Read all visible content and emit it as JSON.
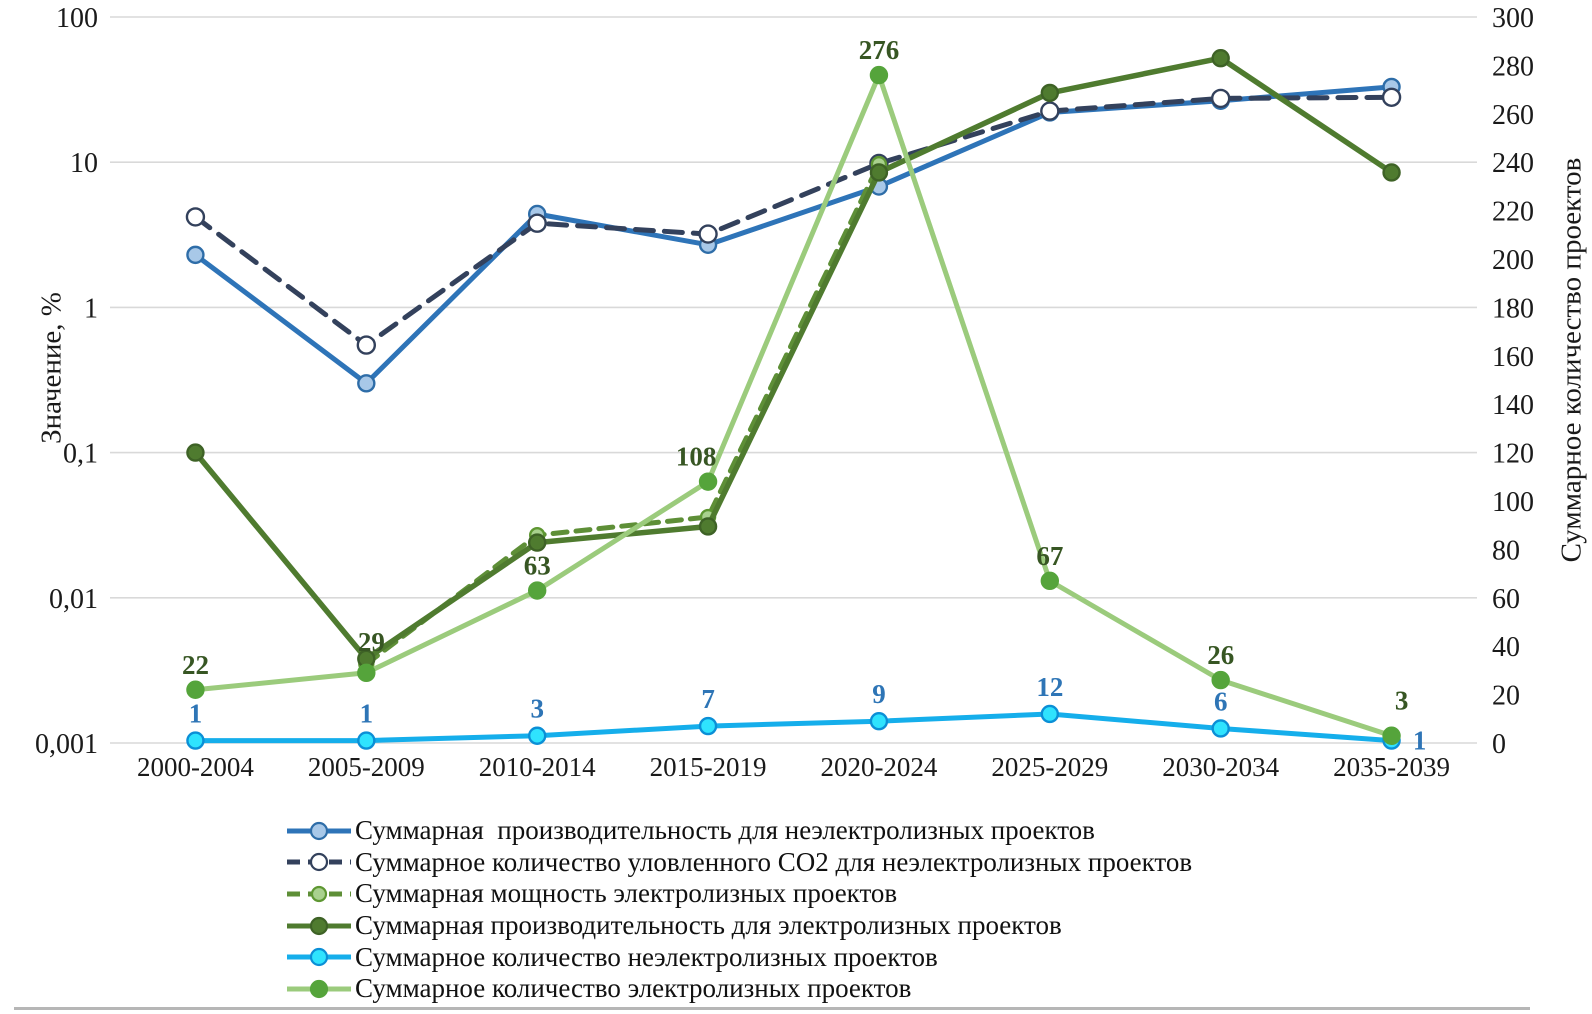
{
  "chart_data": {
    "type": "line",
    "categories": [
      "2000-2004",
      "2005-2009",
      "2010-2014",
      "2015-2019",
      "2020-2024",
      "2025-2029",
      "2030-2034",
      "2035-2039"
    ],
    "left_axis": {
      "title": "Значение, %",
      "scale": "log",
      "min": 0.001,
      "max": 100,
      "ticks": [
        {
          "label": "100",
          "value": 100
        },
        {
          "label": "10",
          "value": 10
        },
        {
          "label": "1",
          "value": 1
        },
        {
          "label": "0,1",
          "value": 0.1
        },
        {
          "label": "0,01",
          "value": 0.01
        },
        {
          "label": "0,001",
          "value": 0.001
        }
      ]
    },
    "right_axis": {
      "title": "Суммарное количество проектов",
      "scale": "linear",
      "min": 0,
      "max": 300,
      "ticks": [
        {
          "label": "300",
          "value": 300
        },
        {
          "label": "280",
          "value": 280
        },
        {
          "label": "260",
          "value": 260
        },
        {
          "label": "240",
          "value": 240
        },
        {
          "label": "220",
          "value": 220
        },
        {
          "label": "200",
          "value": 200
        },
        {
          "label": "180",
          "value": 180
        },
        {
          "label": "160",
          "value": 160
        },
        {
          "label": "140",
          "value": 140
        },
        {
          "label": "120",
          "value": 120
        },
        {
          "label": "100",
          "value": 100
        },
        {
          "label": "80",
          "value": 80
        },
        {
          "label": "60",
          "value": 60
        },
        {
          "label": "40",
          "value": 40
        },
        {
          "label": "20",
          "value": 20
        },
        {
          "label": "0",
          "value": 0
        }
      ]
    },
    "gridline_values": [
      100,
      10,
      1,
      0.1,
      0.01,
      0.001
    ],
    "grid_color": "#d9d9d9",
    "series": [
      {
        "name": "Суммарная  производительность для неэлектролизных проектов",
        "axis": "left",
        "line": "solid",
        "color": "#2E74B8",
        "width": 5,
        "marker": {
          "fill": "#A8C8E8",
          "stroke": "#2E6DA8",
          "r": 8
        },
        "values": [
          2.3,
          0.3,
          4.4,
          2.7,
          6.8,
          22,
          26.5,
          33
        ]
      },
      {
        "name": "Суммарное количество уловленного CO2 для неэлектролизных проектов",
        "axis": "left",
        "line": "dashed",
        "dash": "18 11",
        "color": "#33415C",
        "width": 5,
        "marker": {
          "fill": "#FFFFFF",
          "stroke": "#33415C",
          "r": 8.5
        },
        "values": [
          4.2,
          0.55,
          3.8,
          3.2,
          9.8,
          22.5,
          27.5,
          28
        ]
      },
      {
        "name": "Суммарная мощность электролизных проектов",
        "axis": "left",
        "line": "dashed",
        "dash": "14 9",
        "color": "#5E8F37",
        "width": 5,
        "marker": {
          "fill": "#A9D18E",
          "stroke": "#5E9732",
          "r": 7
        },
        "values": [
          null,
          0.0035,
          0.027,
          0.036,
          9.7,
          null,
          null,
          null
        ]
      },
      {
        "name": "Суммарная производительность для электролизных проектов",
        "axis": "left",
        "line": "solid",
        "color": "#4F7B2F",
        "width": 5.5,
        "marker": {
          "fill": "#4F7B2F",
          "stroke": "#3E6226",
          "r": 8
        },
        "values": [
          0.1,
          0.0038,
          0.024,
          0.031,
          8.5,
          30,
          52,
          8.5
        ]
      },
      {
        "name": "Суммарное количество неэлектролизных проектов",
        "axis": "right",
        "line": "solid",
        "color": "#15AEEB",
        "width": 5,
        "marker": {
          "fill": "#2FE3FE",
          "stroke": "#0B8FD6",
          "r": 8
        },
        "values": [
          1,
          1,
          3,
          7,
          9,
          12,
          6,
          1
        ],
        "point_labels": {
          "color": "#2E75B6",
          "dy": -18,
          "offsets": {
            "7": {
              "dx": 28,
              "dy": 27
            }
          }
        }
      },
      {
        "name": "Суммарное количество электролизных проектов",
        "axis": "right",
        "line": "solid",
        "color": "#9BCB7C",
        "width": 5,
        "marker": {
          "fill": "#55A43B",
          "stroke": "#55A43B",
          "r": 8
        },
        "values": [
          22,
          29,
          63,
          108,
          276,
          67,
          26,
          3
        ],
        "point_labels": {
          "color": "#375623",
          "dy": -16,
          "offsets": {
            "1": {
              "dx": 5,
              "dy": -6
            },
            "3": {
              "dx": -12
            },
            "7": {
              "dx": 10,
              "dy": -10
            }
          }
        }
      }
    ]
  }
}
